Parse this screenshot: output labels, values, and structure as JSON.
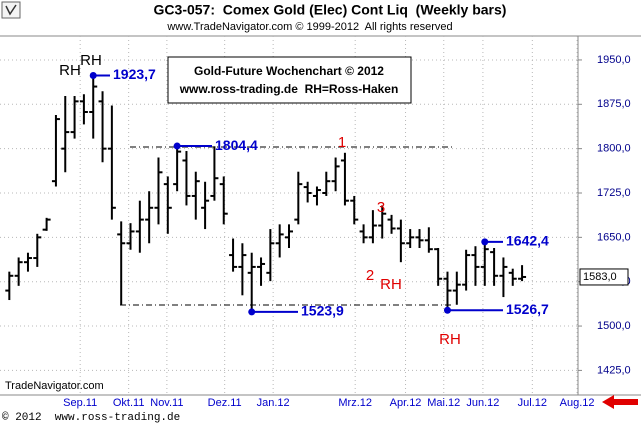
{
  "chart_data": {
    "type": "ohlc",
    "title": "GC3-057:  Comex Gold (Elec) Cont Liq  (Weekly bars)",
    "subtitle": "www.TradeNavigator.com © 1999-2012  All rights reserved",
    "box_text": [
      "Gold-Future Wochenchart © 2012",
      "www.ross-trading.de  RH=Ross-Haken"
    ],
    "watermark": "TradeNavigator.com",
    "footer": "© 2012  www.ross-trading.de",
    "color": "#000000",
    "open": [
      1560,
      1585,
      1608,
      1615,
      1663,
      1745,
      1800,
      1828,
      1880,
      1862,
      1880,
      1800,
      1655,
      1640,
      1660,
      1680,
      1700,
      1740,
      1740,
      1780,
      1720,
      1700,
      1720,
      1740,
      1620,
      1600,
      1590,
      1600,
      1590,
      1640,
      1650,
      1680,
      1735,
      1720,
      1725,
      1745,
      1780,
      1712,
      1660,
      1650,
      1670,
      1680,
      1665,
      1640,
      1650,
      1645,
      1630,
      1580,
      1560,
      1570,
      1620,
      1600,
      1625,
      1585,
      1590,
      1580
    ],
    "high": [
      1592,
      1616,
      1624,
      1656,
      1683,
      1857,
      1889,
      1889,
      1892,
      1923.7,
      1897,
      1873,
      1677,
      1674,
      1712,
      1728,
      1785,
      1753,
      1804.4,
      1796,
      1761,
      1744,
      1804,
      1753,
      1648,
      1640,
      1624,
      1616,
      1664,
      1672,
      1672,
      1761,
      1744,
      1736,
      1761,
      1785,
      1793,
      1720,
      1672,
      1696,
      1704,
      1688,
      1680,
      1664,
      1664,
      1667,
      1632,
      1592,
      1592,
      1629,
      1635,
      1642.4,
      1632,
      1616,
      1597,
      1603
    ],
    "low": [
      1544,
      1568,
      1592,
      1600,
      1661,
      1736,
      1760,
      1817,
      1841,
      1817,
      1777,
      1680,
      1536,
      1629,
      1624,
      1640,
      1672,
      1656,
      1728,
      1704,
      1680,
      1664,
      1712,
      1672,
      1592,
      1552,
      1523.9,
      1568,
      1576,
      1616,
      1632,
      1672,
      1709,
      1704,
      1720,
      1728,
      1704,
      1672,
      1640,
      1640,
      1648,
      1656,
      1608,
      1632,
      1632,
      1624,
      1568,
      1526.7,
      1536,
      1560,
      1568,
      1568,
      1568,
      1549,
      1568,
      1576
    ],
    "close": [
      1585,
      1608,
      1615,
      1650,
      1680,
      1850,
      1828,
      1880,
      1862,
      1905,
      1800,
      1700,
      1640,
      1660,
      1680,
      1700,
      1760,
      1700,
      1795,
      1720,
      1745,
      1712,
      1750,
      1690,
      1600,
      1620,
      1600,
      1605,
      1640,
      1655,
      1660,
      1740,
      1725,
      1730,
      1745,
      1770,
      1712,
      1680,
      1650,
      1670,
      1690,
      1665,
      1640,
      1650,
      1645,
      1630,
      1580,
      1560,
      1570,
      1620,
      1600,
      1630,
      1585,
      1600,
      1580,
      1583
    ],
    "xlim": [
      -1,
      61
    ],
    "xticks": [
      {
        "value": 7.6,
        "label": "Sep.11"
      },
      {
        "value": 12.8,
        "label": "Okt.11"
      },
      {
        "value": 16.9,
        "label": "Nov.11"
      },
      {
        "value": 23.1,
        "label": "Dez.11"
      },
      {
        "value": 28.3,
        "label": "Jan.12"
      },
      {
        "value": 37.1,
        "label": "Mrz.12"
      },
      {
        "value": 42.5,
        "label": "Apr.12"
      },
      {
        "value": 46.6,
        "label": "Mai.12"
      },
      {
        "value": 50.8,
        "label": "Jun.12"
      },
      {
        "value": 56.1,
        "label": "Jul.12"
      },
      {
        "value": 60.9,
        "label": "Aug.12"
      }
    ],
    "ylim": [
      1383.4,
      1990.5
    ],
    "yticks": [
      {
        "value": 1425,
        "label": "1425,0"
      },
      {
        "value": 1500,
        "label": "1500,0"
      },
      {
        "value": 1575,
        "label": "1575,0"
      },
      {
        "value": 1650,
        "label": "1650,0"
      },
      {
        "value": 1725,
        "label": "1725,0"
      },
      {
        "value": 1800,
        "label": "1800,0"
      },
      {
        "value": 1875,
        "label": "1875,0"
      },
      {
        "value": 1950,
        "label": "1950,0"
      }
    ],
    "grid": true,
    "last": {
      "value": 1583,
      "label": "1583,0"
    },
    "price_marks": [
      {
        "bar": 9,
        "value": 1923.7,
        "label": "1923,7"
      },
      {
        "bar": 18,
        "value": 1804.4,
        "label": "1804,4"
      },
      {
        "bar": 26,
        "value": 1523.9,
        "label": "1523,9"
      },
      {
        "bar": 51,
        "value": 1642.4,
        "label": "1642,4"
      },
      {
        "bar": 47,
        "value": 1526.7,
        "label": "1526,7"
      }
    ],
    "mark_color": "#0000cc",
    "hlines": [
      1802.8,
      1535.6
    ],
    "labels": [
      {
        "text": "RH",
        "color": "#000000"
      },
      {
        "text": "RH",
        "color": "#000000"
      },
      {
        "text": "1",
        "color": "#e00000"
      },
      {
        "text": "3",
        "color": "#e00000"
      },
      {
        "text": "2",
        "color": "#e00000"
      },
      {
        "text": "RH",
        "color": "#e00000"
      },
      {
        "text": "RH",
        "color": "#e00000"
      }
    ]
  }
}
